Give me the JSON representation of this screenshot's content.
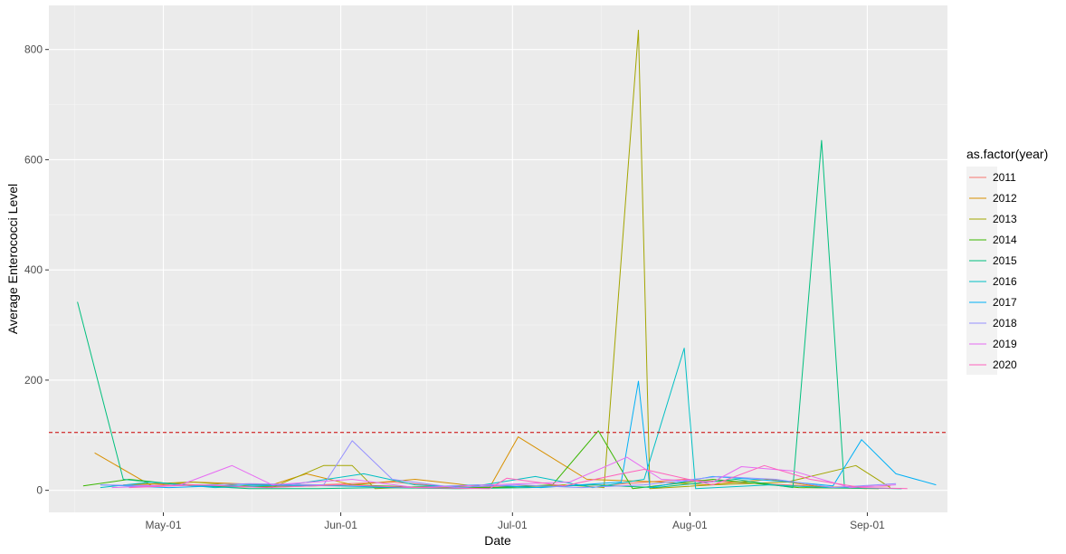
{
  "chart_data": {
    "type": "line",
    "title": "",
    "xlabel": "Date",
    "ylabel": "Average Enterococci Level",
    "x_axis": {
      "kind": "date",
      "range": [
        "2020-04-11",
        "2020-09-15"
      ],
      "ticks": [
        {
          "date": "2020-05-01",
          "label": "May-01"
        },
        {
          "date": "2020-06-01",
          "label": "Jun-01"
        },
        {
          "date": "2020-07-01",
          "label": "Jul-01"
        },
        {
          "date": "2020-08-01",
          "label": "Aug-01"
        },
        {
          "date": "2020-09-01",
          "label": "Sep-01"
        }
      ]
    },
    "y_axis": {
      "range": [
        -40,
        880
      ],
      "ticks": [
        0,
        200,
        400,
        600,
        800
      ]
    },
    "grid": true,
    "reference_line": {
      "y": 105,
      "color": "#cc0000",
      "style": "dashed"
    },
    "legend": {
      "title": "as.factor(year)",
      "position": "right"
    },
    "series": [
      {
        "name": "2011",
        "color": "#F8766D",
        "points": [
          [
            "2020-04-22",
            8
          ],
          [
            "2020-05-02",
            12
          ],
          [
            "2020-05-15",
            6
          ],
          [
            "2020-05-28",
            10
          ],
          [
            "2020-06-10",
            15
          ],
          [
            "2020-06-22",
            5
          ],
          [
            "2020-07-05",
            8
          ],
          [
            "2020-07-18",
            10
          ],
          [
            "2020-07-31",
            20
          ],
          [
            "2020-08-13",
            12
          ],
          [
            "2020-08-26",
            6
          ],
          [
            "2020-09-05",
            8
          ]
        ]
      },
      {
        "name": "2012",
        "color": "#D89000",
        "points": [
          [
            "2020-04-19",
            68
          ],
          [
            "2020-04-29",
            8
          ],
          [
            "2020-05-06",
            15
          ],
          [
            "2020-05-20",
            10
          ],
          [
            "2020-05-26",
            30
          ],
          [
            "2020-06-03",
            10
          ],
          [
            "2020-06-14",
            20
          ],
          [
            "2020-06-27",
            5
          ],
          [
            "2020-07-02",
            97
          ],
          [
            "2020-07-14",
            20
          ],
          [
            "2020-07-27",
            15
          ],
          [
            "2020-08-04",
            10
          ],
          [
            "2020-08-15",
            20
          ],
          [
            "2020-08-24",
            6
          ],
          [
            "2020-09-01",
            3
          ]
        ]
      },
      {
        "name": "2013",
        "color": "#A3A500",
        "points": [
          [
            "2020-04-24",
            10
          ],
          [
            "2020-05-06",
            15
          ],
          [
            "2020-05-20",
            5
          ],
          [
            "2020-05-29",
            45
          ],
          [
            "2020-06-03",
            45
          ],
          [
            "2020-06-07",
            3
          ],
          [
            "2020-06-18",
            8
          ],
          [
            "2020-06-28",
            5
          ],
          [
            "2020-07-10",
            10
          ],
          [
            "2020-07-17",
            5
          ],
          [
            "2020-07-23",
            835
          ],
          [
            "2020-07-25",
            3
          ],
          [
            "2020-08-05",
            10
          ],
          [
            "2020-08-18",
            15
          ],
          [
            "2020-08-30",
            45
          ],
          [
            "2020-09-05",
            5
          ]
        ]
      },
      {
        "name": "2014",
        "color": "#39B600",
        "points": [
          [
            "2020-04-17",
            8
          ],
          [
            "2020-04-25",
            20
          ],
          [
            "2020-05-06",
            8
          ],
          [
            "2020-05-20",
            6
          ],
          [
            "2020-06-03",
            10
          ],
          [
            "2020-06-17",
            5
          ],
          [
            "2020-06-28",
            5
          ],
          [
            "2020-07-08",
            10
          ],
          [
            "2020-07-16",
            108
          ],
          [
            "2020-07-22",
            3
          ],
          [
            "2020-08-05",
            20
          ],
          [
            "2020-08-20",
            5
          ],
          [
            "2020-09-03",
            3
          ]
        ]
      },
      {
        "name": "2015",
        "color": "#00BF7D",
        "points": [
          [
            "2020-04-16",
            342
          ],
          [
            "2020-04-24",
            20
          ],
          [
            "2020-05-04",
            10
          ],
          [
            "2020-05-16",
            3
          ],
          [
            "2020-05-28",
            3
          ],
          [
            "2020-06-08",
            5
          ],
          [
            "2020-06-21",
            3
          ],
          [
            "2020-07-04",
            5
          ],
          [
            "2020-07-15",
            10
          ],
          [
            "2020-07-26",
            5
          ],
          [
            "2020-08-09",
            20
          ],
          [
            "2020-08-19",
            5
          ],
          [
            "2020-08-24",
            635
          ],
          [
            "2020-08-28",
            5
          ],
          [
            "2020-09-07",
            3
          ]
        ]
      },
      {
        "name": "2016",
        "color": "#00BFC4",
        "points": [
          [
            "2020-04-20",
            5
          ],
          [
            "2020-04-29",
            15
          ],
          [
            "2020-05-10",
            5
          ],
          [
            "2020-05-23",
            10
          ],
          [
            "2020-06-05",
            30
          ],
          [
            "2020-06-14",
            10
          ],
          [
            "2020-06-23",
            5
          ],
          [
            "2020-07-05",
            25
          ],
          [
            "2020-07-15",
            5
          ],
          [
            "2020-07-24",
            20
          ],
          [
            "2020-07-31",
            258
          ],
          [
            "2020-08-02",
            3
          ],
          [
            "2020-08-15",
            10
          ],
          [
            "2020-08-25",
            5
          ],
          [
            "2020-09-07",
            3
          ]
        ]
      },
      {
        "name": "2017",
        "color": "#00B0F6",
        "points": [
          [
            "2020-04-20",
            10
          ],
          [
            "2020-05-02",
            5
          ],
          [
            "2020-05-16",
            10
          ],
          [
            "2020-05-31",
            8
          ],
          [
            "2020-06-13",
            5
          ],
          [
            "2020-06-25",
            10
          ],
          [
            "2020-07-06",
            5
          ],
          [
            "2020-07-20",
            15
          ],
          [
            "2020-07-23",
            198
          ],
          [
            "2020-07-25",
            5
          ],
          [
            "2020-08-05",
            25
          ],
          [
            "2020-08-19",
            15
          ],
          [
            "2020-08-26",
            8
          ],
          [
            "2020-08-31",
            92
          ],
          [
            "2020-09-06",
            30
          ],
          [
            "2020-09-13",
            10
          ]
        ]
      },
      {
        "name": "2018",
        "color": "#9590FF",
        "points": [
          [
            "2020-04-20",
            10
          ],
          [
            "2020-05-02",
            8
          ],
          [
            "2020-05-16",
            12
          ],
          [
            "2020-05-29",
            10
          ],
          [
            "2020-06-03",
            90
          ],
          [
            "2020-06-10",
            20
          ],
          [
            "2020-06-21",
            5
          ],
          [
            "2020-07-02",
            10
          ],
          [
            "2020-07-13",
            5
          ],
          [
            "2020-07-24",
            10
          ],
          [
            "2020-08-06",
            25
          ],
          [
            "2020-08-16",
            20
          ],
          [
            "2020-08-26",
            5
          ],
          [
            "2020-09-06",
            12
          ]
        ]
      },
      {
        "name": "2019",
        "color": "#E76BF3",
        "points": [
          [
            "2020-04-22",
            5
          ],
          [
            "2020-05-04",
            10
          ],
          [
            "2020-05-13",
            45
          ],
          [
            "2020-05-20",
            10
          ],
          [
            "2020-06-03",
            20
          ],
          [
            "2020-06-14",
            5
          ],
          [
            "2020-06-27",
            10
          ],
          [
            "2020-07-11",
            15
          ],
          [
            "2020-07-21",
            60
          ],
          [
            "2020-07-27",
            20
          ],
          [
            "2020-08-05",
            15
          ],
          [
            "2020-08-10",
            43
          ],
          [
            "2020-08-19",
            35
          ],
          [
            "2020-08-29",
            5
          ],
          [
            "2020-09-06",
            10
          ]
        ]
      },
      {
        "name": "2020",
        "color": "#FF62BC",
        "points": [
          [
            "2020-04-25",
            5
          ],
          [
            "2020-05-07",
            10
          ],
          [
            "2020-05-19",
            5
          ],
          [
            "2020-06-01",
            10
          ],
          [
            "2020-06-14",
            5
          ],
          [
            "2020-06-27",
            3
          ],
          [
            "2020-06-30",
            22
          ],
          [
            "2020-07-10",
            8
          ],
          [
            "2020-07-20",
            30
          ],
          [
            "2020-07-24",
            38
          ],
          [
            "2020-08-05",
            10
          ],
          [
            "2020-08-14",
            45
          ],
          [
            "2020-08-22",
            20
          ],
          [
            "2020-08-31",
            5
          ],
          [
            "2020-09-08",
            3
          ]
        ]
      }
    ]
  }
}
